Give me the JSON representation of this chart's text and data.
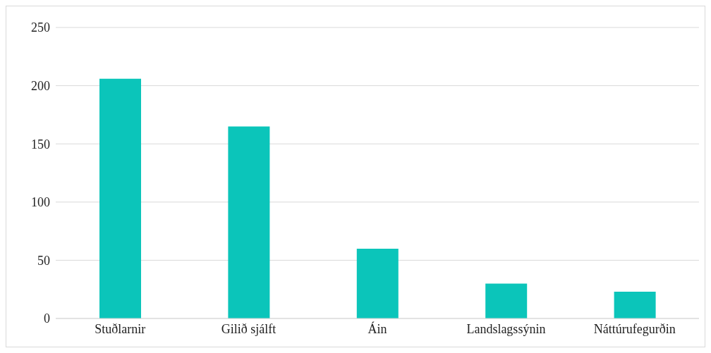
{
  "chart_data": {
    "type": "bar",
    "categories": [
      "Stuðlarnir",
      "Gilið sjálft",
      "Áin",
      "Landslagssýnin",
      "Náttúrufegurðin"
    ],
    "values": [
      206,
      165,
      60,
      30,
      23
    ],
    "color": "#0bc5ba",
    "ylim": [
      0,
      250
    ],
    "yticks": [
      0,
      50,
      100,
      150,
      200,
      250
    ],
    "grid": "y"
  }
}
